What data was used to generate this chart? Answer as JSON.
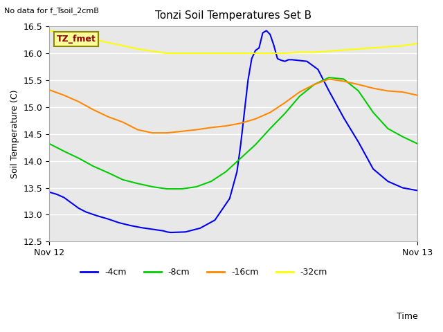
{
  "title": "Tonzi Soil Temperatures Set B",
  "xlabel": "Time",
  "ylabel": "Soil Temperature (C)",
  "no_data_text": "No data for f_Tsoil_2cmB",
  "tz_fmet_label": "TZ_fmet",
  "ylim": [
    12.5,
    16.5
  ],
  "xlim": [
    0,
    1
  ],
  "yticks": [
    12.5,
    13.0,
    13.5,
    14.0,
    14.5,
    15.0,
    15.5,
    16.0,
    16.5
  ],
  "xticklabels": [
    "Nov 12",
    "Nov 13"
  ],
  "xtick_positions": [
    0.0,
    1.0
  ],
  "bg_color": "#e8e8e8",
  "grid_color": "#ffffff",
  "colors": {
    "4cm": "#0000ee",
    "8cm": "#00cc00",
    "16cm": "#ff8800",
    "32cm": "#ffff00"
  },
  "legend_labels": [
    "-4cm",
    "-8cm",
    "-16cm",
    "-32cm"
  ],
  "legend_colors": [
    "#0000ee",
    "#00cc00",
    "#ff8800",
    "#ffff00"
  ],
  "series": {
    "4cm": {
      "x": [
        0.0,
        0.02,
        0.04,
        0.06,
        0.08,
        0.1,
        0.13,
        0.16,
        0.19,
        0.22,
        0.25,
        0.28,
        0.31,
        0.32,
        0.33,
        0.37,
        0.41,
        0.45,
        0.49,
        0.51,
        0.52,
        0.53,
        0.54,
        0.55,
        0.56,
        0.57,
        0.58,
        0.59,
        0.6,
        0.61,
        0.62,
        0.63,
        0.64,
        0.65,
        0.66,
        0.7,
        0.73,
        0.76,
        0.8,
        0.84,
        0.88,
        0.92,
        0.96,
        1.0
      ],
      "y": [
        13.42,
        13.38,
        13.32,
        13.22,
        13.12,
        13.05,
        12.98,
        12.92,
        12.85,
        12.8,
        12.76,
        12.73,
        12.7,
        12.68,
        12.67,
        12.68,
        12.75,
        12.9,
        13.3,
        13.8,
        14.3,
        14.9,
        15.5,
        15.9,
        16.05,
        16.1,
        16.38,
        16.42,
        16.35,
        16.15,
        15.9,
        15.87,
        15.85,
        15.88,
        15.88,
        15.85,
        15.7,
        15.3,
        14.8,
        14.35,
        13.85,
        13.62,
        13.5,
        13.45
      ]
    },
    "8cm": {
      "x": [
        0.0,
        0.04,
        0.08,
        0.12,
        0.16,
        0.2,
        0.24,
        0.28,
        0.32,
        0.36,
        0.4,
        0.44,
        0.48,
        0.52,
        0.56,
        0.6,
        0.64,
        0.68,
        0.72,
        0.76,
        0.8,
        0.84,
        0.88,
        0.92,
        0.96,
        1.0
      ],
      "y": [
        14.32,
        14.18,
        14.05,
        13.9,
        13.78,
        13.65,
        13.58,
        13.52,
        13.48,
        13.48,
        13.52,
        13.62,
        13.8,
        14.05,
        14.3,
        14.6,
        14.88,
        15.2,
        15.42,
        15.55,
        15.52,
        15.3,
        14.9,
        14.6,
        14.45,
        14.32
      ]
    },
    "16cm": {
      "x": [
        0.0,
        0.04,
        0.08,
        0.12,
        0.16,
        0.2,
        0.24,
        0.28,
        0.32,
        0.36,
        0.4,
        0.44,
        0.48,
        0.52,
        0.56,
        0.6,
        0.64,
        0.68,
        0.72,
        0.76,
        0.8,
        0.84,
        0.88,
        0.92,
        0.96,
        1.0
      ],
      "y": [
        15.32,
        15.22,
        15.1,
        14.95,
        14.82,
        14.72,
        14.58,
        14.52,
        14.52,
        14.55,
        14.58,
        14.62,
        14.65,
        14.7,
        14.78,
        14.9,
        15.08,
        15.28,
        15.42,
        15.52,
        15.48,
        15.42,
        15.35,
        15.3,
        15.28,
        15.22
      ]
    },
    "32cm": {
      "x": [
        0.0,
        0.04,
        0.08,
        0.12,
        0.16,
        0.2,
        0.24,
        0.28,
        0.32,
        0.36,
        0.4,
        0.44,
        0.48,
        0.52,
        0.56,
        0.6,
        0.64,
        0.68,
        0.72,
        0.76,
        0.8,
        0.84,
        0.88,
        0.92,
        0.96,
        1.0
      ],
      "y": [
        16.42,
        16.38,
        16.32,
        16.26,
        16.2,
        16.14,
        16.08,
        16.04,
        16.0,
        16.0,
        16.0,
        16.0,
        16.0,
        16.0,
        16.0,
        16.0,
        16.0,
        16.02,
        16.02,
        16.04,
        16.06,
        16.08,
        16.1,
        16.12,
        16.14,
        16.18
      ]
    }
  }
}
